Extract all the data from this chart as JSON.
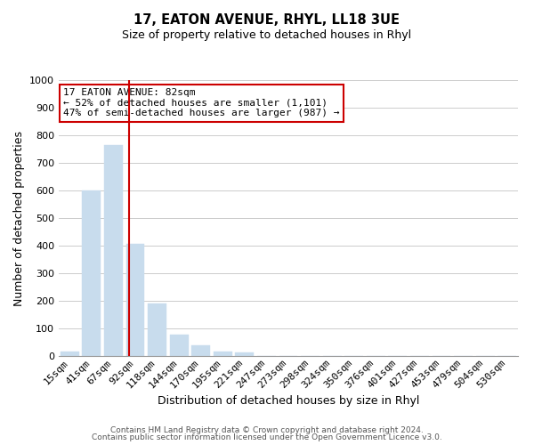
{
  "title": "17, EATON AVENUE, RHYL, LL18 3UE",
  "subtitle": "Size of property relative to detached houses in Rhyl",
  "xlabel": "Distribution of detached houses by size in Rhyl",
  "ylabel": "Number of detached properties",
  "bar_labels": [
    "15sqm",
    "41sqm",
    "67sqm",
    "92sqm",
    "118sqm",
    "144sqm",
    "170sqm",
    "195sqm",
    "221sqm",
    "247sqm",
    "273sqm",
    "298sqm",
    "324sqm",
    "350sqm",
    "376sqm",
    "401sqm",
    "427sqm",
    "453sqm",
    "479sqm",
    "504sqm",
    "530sqm"
  ],
  "bar_values": [
    15,
    600,
    765,
    405,
    190,
    78,
    40,
    15,
    12,
    0,
    0,
    0,
    0,
    0,
    0,
    0,
    0,
    0,
    0,
    0,
    0
  ],
  "bar_color": "#c8dced",
  "bar_edge_color": "#c8dced",
  "grid_color": "#cccccc",
  "vline_x_idx": 2.72,
  "vline_color": "#cc0000",
  "annotation_title": "17 EATON AVENUE: 82sqm",
  "annotation_line1": "← 52% of detached houses are smaller (1,101)",
  "annotation_line2": "47% of semi-detached houses are larger (987) →",
  "annotation_box_color": "#ffffff",
  "annotation_box_edge": "#cc0000",
  "ylim": [
    0,
    1000
  ],
  "yticks": [
    0,
    100,
    200,
    300,
    400,
    500,
    600,
    700,
    800,
    900,
    1000
  ],
  "footer1": "Contains HM Land Registry data © Crown copyright and database right 2024.",
  "footer2": "Contains public sector information licensed under the Open Government Licence v3.0.",
  "title_fontsize": 10.5,
  "subtitle_fontsize": 9,
  "axis_label_fontsize": 9,
  "tick_fontsize": 8,
  "footer_fontsize": 6.5,
  "annotation_fontsize": 8
}
